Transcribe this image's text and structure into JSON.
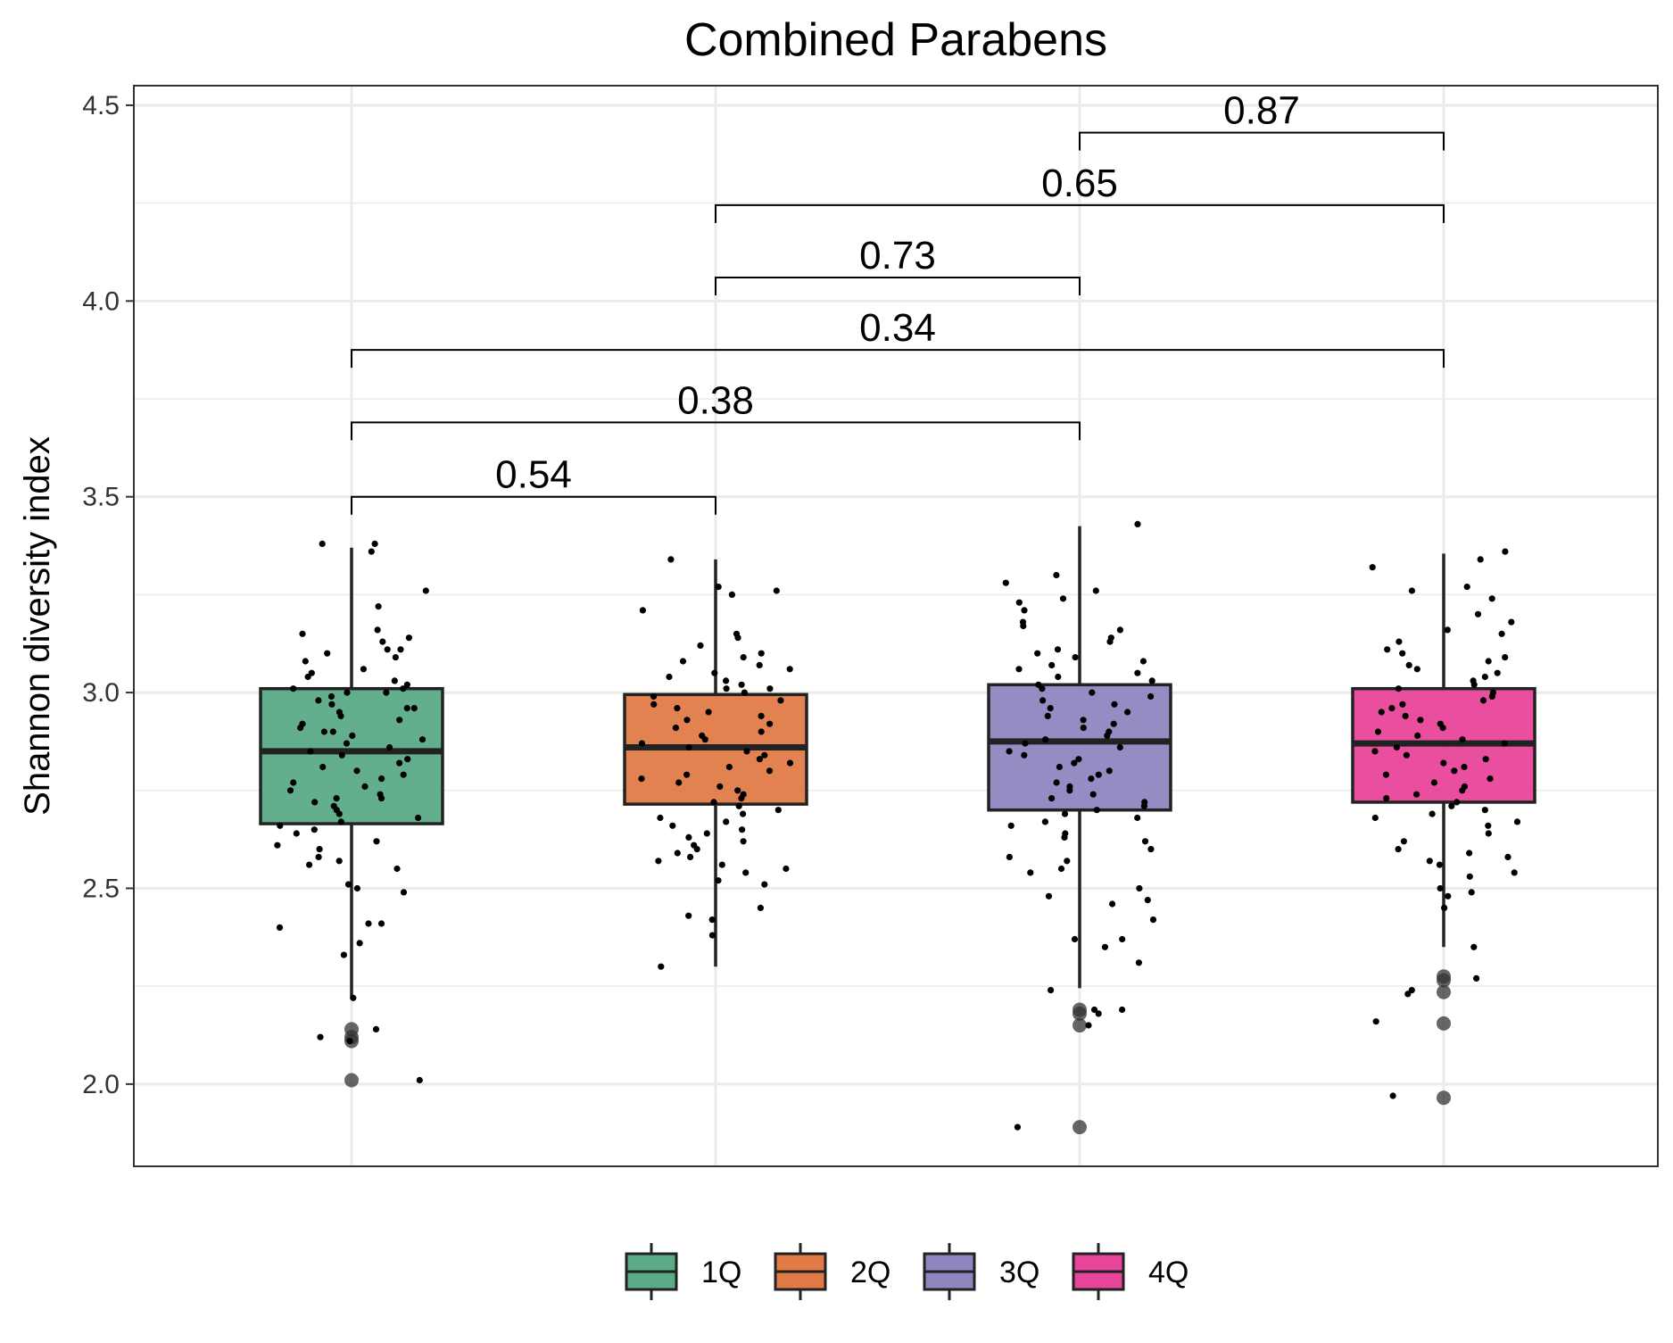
{
  "chart_data": {
    "type": "box",
    "title": "Combined Parabens",
    "xlabel": "",
    "ylabel": "Shannon diversity index",
    "ylim": [
      1.79,
      4.55
    ],
    "yticks": [
      "2.0",
      "2.5",
      "3.0",
      "3.5",
      "4.0",
      "4.5"
    ],
    "grid": true,
    "legend_position": "bottom",
    "categories": [
      "1Q",
      "2Q",
      "3Q",
      "4Q"
    ],
    "colors": [
      "#5bab87",
      "#e07b48",
      "#8e86bf",
      "#e8449a"
    ],
    "boxes": [
      {
        "name": "1Q",
        "q1": 2.665,
        "median": 2.85,
        "q3": 3.01,
        "whisker_low": 2.22,
        "whisker_high": 3.37,
        "outliers": [
          2.14,
          2.12,
          2.11,
          2.01
        ]
      },
      {
        "name": "2Q",
        "q1": 2.715,
        "median": 2.86,
        "q3": 2.995,
        "whisker_low": 2.3,
        "whisker_high": 3.34,
        "outliers": []
      },
      {
        "name": "3Q",
        "q1": 2.7,
        "median": 2.875,
        "q3": 3.02,
        "whisker_low": 2.245,
        "whisker_high": 3.425,
        "outliers": [
          2.19,
          2.18,
          2.15,
          1.89
        ]
      },
      {
        "name": "4Q",
        "q1": 2.72,
        "median": 2.87,
        "q3": 3.01,
        "whisker_low": 2.35,
        "whisker_high": 3.355,
        "outliers": [
          2.275,
          2.265,
          2.235,
          2.155,
          1.965
        ]
      }
    ],
    "jitter_points": [
      [
        3.38,
        3.38,
        3.36,
        3.26,
        3.22,
        3.16,
        3.15,
        3.14,
        3.13,
        3.11,
        3.11,
        3.1,
        3.09,
        3.08,
        3.06,
        3.05,
        3.04,
        3.03,
        3.02,
        3.01,
        3.01,
        3.0,
        3.0,
        2.99,
        2.98,
        2.97,
        2.96,
        2.96,
        2.95,
        2.94,
        2.93,
        2.92,
        2.91,
        2.9,
        2.9,
        2.89,
        2.88,
        2.87,
        2.86,
        2.85,
        2.84,
        2.83,
        2.82,
        2.81,
        2.8,
        2.79,
        2.78,
        2.77,
        2.76,
        2.75,
        2.74,
        2.73,
        2.73,
        2.72,
        2.71,
        2.7,
        2.69,
        2.68,
        2.67,
        2.66,
        2.65,
        2.64,
        2.62,
        2.61,
        2.6,
        2.58,
        2.57,
        2.56,
        2.55,
        2.51,
        2.5,
        2.49,
        2.41,
        2.41,
        2.4,
        2.36,
        2.33,
        2.22,
        2.14,
        2.12,
        2.11,
        2.01
      ],
      [
        3.34,
        3.27,
        3.26,
        3.25,
        3.21,
        3.15,
        3.14,
        3.12,
        3.1,
        3.09,
        3.08,
        3.07,
        3.06,
        3.05,
        3.04,
        3.03,
        3.02,
        3.01,
        3.01,
        3.0,
        2.99,
        2.98,
        2.97,
        2.96,
        2.95,
        2.94,
        2.93,
        2.92,
        2.91,
        2.9,
        2.89,
        2.88,
        2.87,
        2.86,
        2.85,
        2.84,
        2.83,
        2.82,
        2.81,
        2.8,
        2.79,
        2.78,
        2.77,
        2.76,
        2.75,
        2.74,
        2.73,
        2.72,
        2.71,
        2.7,
        2.69,
        2.68,
        2.67,
        2.66,
        2.65,
        2.64,
        2.63,
        2.62,
        2.61,
        2.6,
        2.59,
        2.58,
        2.57,
        2.56,
        2.55,
        2.54,
        2.52,
        2.51,
        2.45,
        2.43,
        2.42,
        2.38,
        2.3
      ],
      [
        3.43,
        3.3,
        3.28,
        3.26,
        3.24,
        3.23,
        3.21,
        3.18,
        3.17,
        3.16,
        3.14,
        3.13,
        3.11,
        3.1,
        3.09,
        3.08,
        3.07,
        3.06,
        3.05,
        3.04,
        3.03,
        3.02,
        3.01,
        3.0,
        2.99,
        2.98,
        2.97,
        2.96,
        2.95,
        2.94,
        2.93,
        2.92,
        2.91,
        2.9,
        2.89,
        2.88,
        2.87,
        2.86,
        2.85,
        2.84,
        2.83,
        2.82,
        2.81,
        2.8,
        2.79,
        2.78,
        2.77,
        2.76,
        2.75,
        2.74,
        2.73,
        2.72,
        2.71,
        2.7,
        2.69,
        2.68,
        2.67,
        2.66,
        2.64,
        2.63,
        2.62,
        2.6,
        2.58,
        2.57,
        2.55,
        2.54,
        2.5,
        2.48,
        2.47,
        2.46,
        2.42,
        2.37,
        2.37,
        2.35,
        2.31,
        2.24,
        2.19,
        2.19,
        2.18,
        2.15,
        1.89
      ],
      [
        3.36,
        3.34,
        3.32,
        3.27,
        3.26,
        3.24,
        3.2,
        3.18,
        3.16,
        3.15,
        3.13,
        3.11,
        3.1,
        3.09,
        3.08,
        3.07,
        3.06,
        3.05,
        3.04,
        3.03,
        3.02,
        3.01,
        3.0,
        2.99,
        2.98,
        2.97,
        2.96,
        2.95,
        2.94,
        2.93,
        2.92,
        2.91,
        2.9,
        2.89,
        2.88,
        2.87,
        2.86,
        2.85,
        2.84,
        2.83,
        2.82,
        2.81,
        2.8,
        2.79,
        2.78,
        2.77,
        2.76,
        2.75,
        2.74,
        2.73,
        2.72,
        2.71,
        2.7,
        2.69,
        2.68,
        2.67,
        2.66,
        2.64,
        2.62,
        2.6,
        2.59,
        2.58,
        2.57,
        2.56,
        2.54,
        2.53,
        2.5,
        2.49,
        2.48,
        2.45,
        2.35,
        2.27,
        2.24,
        2.23,
        2.16,
        1.97
      ]
    ],
    "comparisons": [
      {
        "from": "1Q",
        "to": "2Q",
        "label": "0.54",
        "y": 3.5
      },
      {
        "from": "1Q",
        "to": "3Q",
        "label": "0.38",
        "y": 3.69
      },
      {
        "from": "1Q",
        "to": "4Q",
        "label": "0.34",
        "y": 3.875
      },
      {
        "from": "2Q",
        "to": "3Q",
        "label": "0.73",
        "y": 4.06
      },
      {
        "from": "2Q",
        "to": "4Q",
        "label": "0.65",
        "y": 4.245
      },
      {
        "from": "3Q",
        "to": "4Q",
        "label": "0.87",
        "y": 4.43
      }
    ]
  }
}
